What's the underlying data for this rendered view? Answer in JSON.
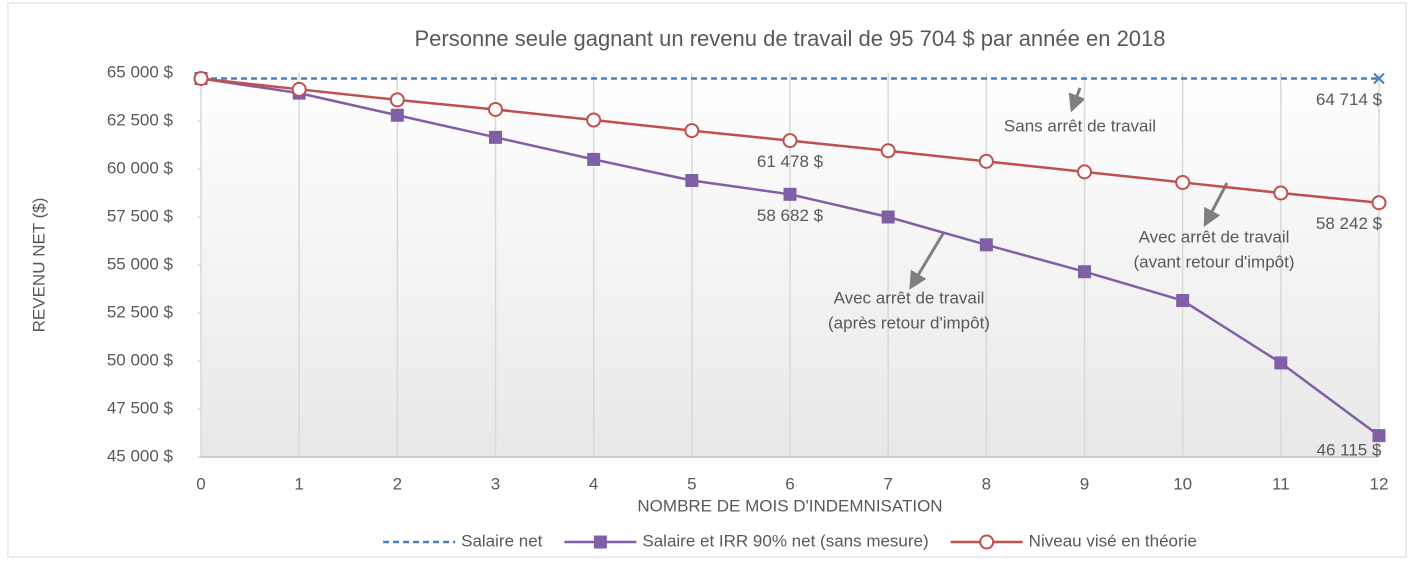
{
  "chart_data": {
    "type": "line",
    "title": "Personne seule gagnant un revenu de travail de 95 704 $ par année en 2018",
    "x_label": "NOMBRE DE MOIS D'INDEMNISATION",
    "y_label": "REVENU NET ($)",
    "x": [
      0,
      1,
      2,
      3,
      4,
      5,
      6,
      7,
      8,
      9,
      10,
      11,
      12
    ],
    "xlim": [
      0,
      12
    ],
    "xticks": [
      0,
      1,
      2,
      3,
      4,
      5,
      6,
      7,
      8,
      9,
      10,
      11,
      12
    ],
    "ylim": [
      45000,
      65000
    ],
    "yticks": [
      {
        "value": 45000,
        "label": "45 000 $"
      },
      {
        "value": 47500,
        "label": "47 500 $"
      },
      {
        "value": 50000,
        "label": "50 000 $"
      },
      {
        "value": 52500,
        "label": "52 500 $"
      },
      {
        "value": 55000,
        "label": "55 000 $"
      },
      {
        "value": 57500,
        "label": "57 500 $"
      },
      {
        "value": 60000,
        "label": "60 000 $"
      },
      {
        "value": 62500,
        "label": "62 500 $"
      },
      {
        "value": 65000,
        "label": "65 000 $"
      }
    ],
    "grid": "x",
    "legend": "bottom",
    "series": [
      {
        "name": "Salaire net",
        "color": "#4a7ebb",
        "dash": true,
        "marker": "x",
        "values": [
          64714,
          64714,
          64714,
          64714,
          64714,
          64714,
          64714,
          64714,
          64714,
          64714,
          64714,
          64714,
          64714
        ],
        "value_labels": [
          null,
          null,
          null,
          null,
          null,
          null,
          null,
          null,
          null,
          null,
          null,
          null,
          "64 714 $"
        ]
      },
      {
        "name": "Salaire et IRR 90% net (sans mesure)",
        "color": "#7f5fa6",
        "marker": "square",
        "values": [
          64714,
          63950,
          62800,
          61650,
          60500,
          59400,
          58682,
          57500,
          56050,
          54650,
          53150,
          49900,
          46115
        ],
        "value_labels": [
          null,
          null,
          null,
          null,
          null,
          null,
          "58 682 $",
          null,
          null,
          null,
          null,
          null,
          "46 115 $"
        ]
      },
      {
        "name": "Niveau visé en théorie",
        "color": "#c0504d",
        "marker": "circle",
        "values": [
          64714,
          64150,
          63600,
          63100,
          62550,
          62000,
          61478,
          60950,
          60400,
          59850,
          59300,
          58750,
          58242
        ],
        "value_labels": [
          null,
          null,
          null,
          null,
          null,
          null,
          "61 478 $",
          null,
          null,
          null,
          null,
          null,
          "58 242 $"
        ]
      }
    ],
    "annotations": [
      {
        "lines": [
          "Sans arrêt de travail"
        ]
      },
      {
        "lines": [
          "Avec arrêt de travail",
          "(avant retour d'impôt)"
        ]
      },
      {
        "lines": [
          "Avec arrêt de travail",
          "(après retour d'impôt)"
        ]
      }
    ]
  }
}
